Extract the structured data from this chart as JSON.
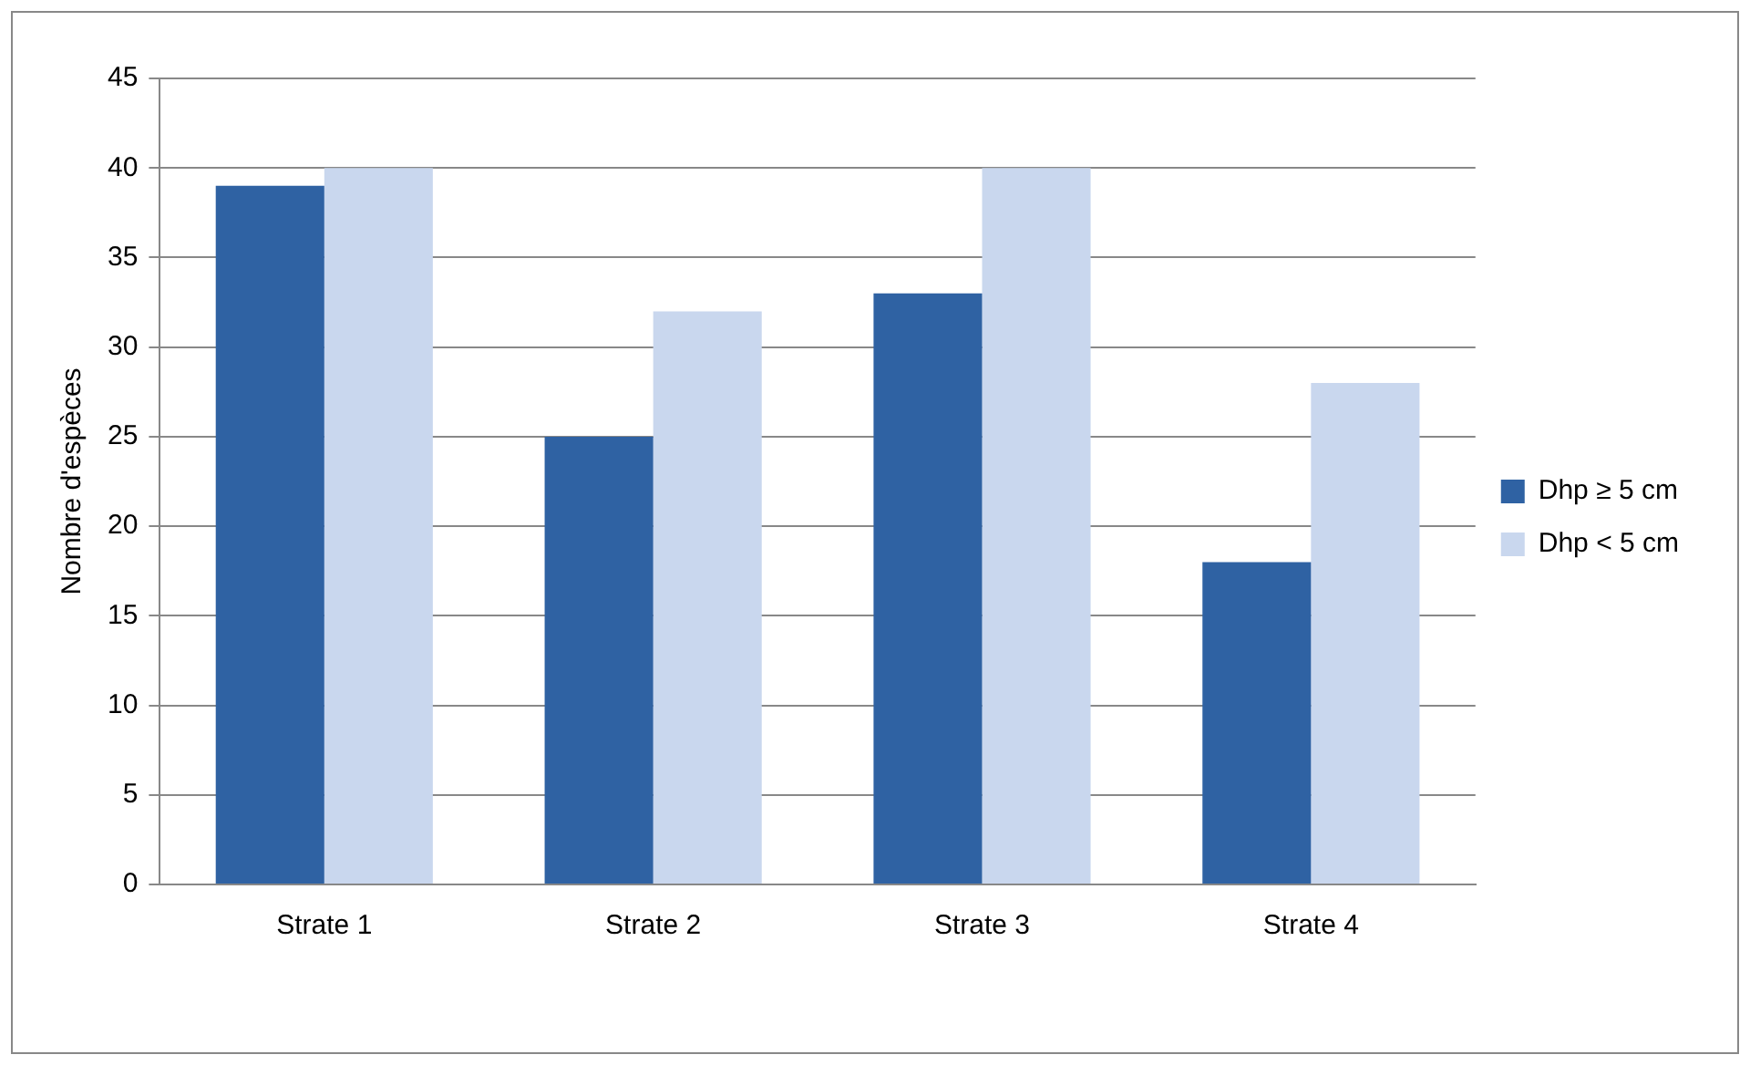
{
  "chart_data": {
    "type": "bar",
    "ylabel": "Nombre d'espèces",
    "categories": [
      "Strate 1",
      "Strate 2",
      "Strate 3",
      "Strate 4"
    ],
    "series": [
      {
        "name": "Dhp ≥ 5 cm",
        "color": "#2f62a3",
        "values": [
          39,
          25,
          33,
          18
        ]
      },
      {
        "name": "Dhp < 5 cm",
        "color": "#c9d7ee",
        "values": [
          40,
          32,
          40,
          28
        ]
      }
    ],
    "ylim": [
      0,
      45
    ],
    "yticks": [
      0,
      5,
      10,
      15,
      20,
      25,
      30,
      35,
      40,
      45
    ],
    "grid": "y",
    "legend": "right"
  }
}
